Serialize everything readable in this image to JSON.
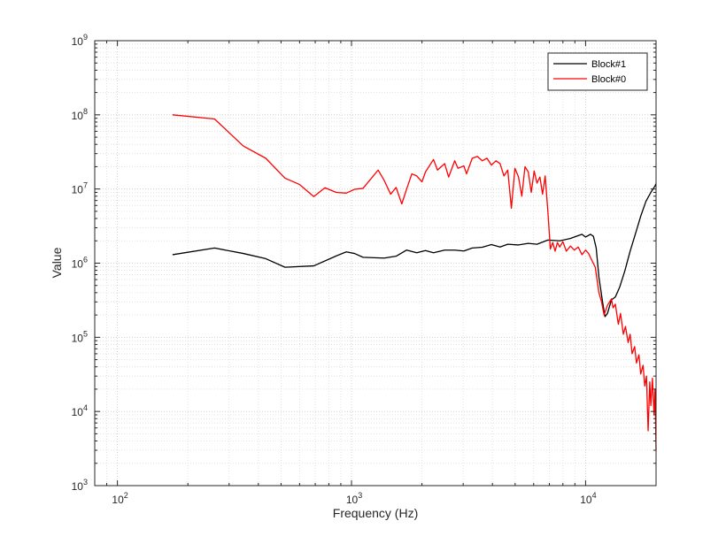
{
  "chart_data": {
    "type": "line",
    "title": "",
    "xlabel": "Frequency (Hz)",
    "ylabel": "Value",
    "xscale": "log",
    "yscale": "log",
    "xlim": [
      80,
      20000
    ],
    "ylim": [
      1000,
      1000000000
    ],
    "grid": true,
    "legend_position": "top-right",
    "x_tick_labels": [
      {
        "value": 100,
        "base": "10",
        "exp": "2"
      },
      {
        "value": 1000,
        "base": "10",
        "exp": "3"
      },
      {
        "value": 10000,
        "base": "10",
        "exp": "4"
      }
    ],
    "y_tick_labels": [
      {
        "value": 1000,
        "base": "10",
        "exp": "3"
      },
      {
        "value": 10000,
        "base": "10",
        "exp": "4"
      },
      {
        "value": 100000,
        "base": "10",
        "exp": "5"
      },
      {
        "value": 1000000,
        "base": "10",
        "exp": "6"
      },
      {
        "value": 10000000,
        "base": "10",
        "exp": "7"
      },
      {
        "value": 100000000,
        "base": "10",
        "exp": "8"
      },
      {
        "value": 1000000000,
        "base": "10",
        "exp": "9"
      }
    ],
    "series": [
      {
        "name": "Block#1",
        "color": "#000000",
        "points": [
          [
            172,
            1300000
          ],
          [
            260,
            1600000
          ],
          [
            345,
            1350000
          ],
          [
            430,
            1150000
          ],
          [
            520,
            880000
          ],
          [
            690,
            920000
          ],
          [
            860,
            1250000
          ],
          [
            950,
            1420000
          ],
          [
            1030,
            1350000
          ],
          [
            1120,
            1200000
          ],
          [
            1290,
            1180000
          ],
          [
            1380,
            1170000
          ],
          [
            1550,
            1240000
          ],
          [
            1720,
            1500000
          ],
          [
            1900,
            1380000
          ],
          [
            2070,
            1480000
          ],
          [
            2240,
            1380000
          ],
          [
            2500,
            1500000
          ],
          [
            2760,
            1500000
          ],
          [
            3020,
            1460000
          ],
          [
            3280,
            1600000
          ],
          [
            3620,
            1640000
          ],
          [
            3960,
            1780000
          ],
          [
            4310,
            1650000
          ],
          [
            4650,
            1800000
          ],
          [
            5170,
            1760000
          ],
          [
            5690,
            1850000
          ],
          [
            6200,
            1800000
          ],
          [
            6900,
            2050000
          ],
          [
            7750,
            2000000
          ],
          [
            8600,
            2150000
          ],
          [
            9300,
            2350000
          ],
          [
            9650,
            2450000
          ],
          [
            10000,
            2250000
          ],
          [
            10500,
            2450000
          ],
          [
            10800,
            2300000
          ],
          [
            11100,
            1600000
          ],
          [
            11400,
            650000
          ],
          [
            11800,
            310000
          ],
          [
            12100,
            190000
          ],
          [
            12400,
            210000
          ],
          [
            12900,
            320000
          ],
          [
            13400,
            350000
          ],
          [
            14000,
            480000
          ],
          [
            14700,
            780000
          ],
          [
            15500,
            1450000
          ],
          [
            16400,
            2600000
          ],
          [
            17200,
            4300000
          ],
          [
            18100,
            6800000
          ],
          [
            19000,
            9000000
          ],
          [
            19800,
            11000000
          ],
          [
            20000,
            11800000
          ]
        ]
      },
      {
        "name": "Block#0",
        "color": "#ff0000",
        "points": [
          [
            172,
            100000000
          ],
          [
            260,
            88000000
          ],
          [
            345,
            38000000
          ],
          [
            430,
            26000000
          ],
          [
            520,
            14000000
          ],
          [
            600,
            11500000
          ],
          [
            690,
            7900000
          ],
          [
            770,
            10400000
          ],
          [
            860,
            9000000
          ],
          [
            950,
            8800000
          ],
          [
            1030,
            9900000
          ],
          [
            1120,
            10200000
          ],
          [
            1300,
            18000000
          ],
          [
            1380,
            13000000
          ],
          [
            1470,
            8500000
          ],
          [
            1550,
            10500000
          ],
          [
            1640,
            6300000
          ],
          [
            1720,
            10000000
          ],
          [
            1810,
            16000000
          ],
          [
            1900,
            15000000
          ],
          [
            2000,
            12500000
          ],
          [
            2070,
            17000000
          ],
          [
            2240,
            25000000
          ],
          [
            2330,
            18000000
          ],
          [
            2500,
            22000000
          ],
          [
            2600,
            14500000
          ],
          [
            2760,
            24000000
          ],
          [
            2850,
            19000000
          ],
          [
            3020,
            20500000
          ],
          [
            3100,
            16000000
          ],
          [
            3280,
            26000000
          ],
          [
            3450,
            27500000
          ],
          [
            3620,
            24000000
          ],
          [
            3790,
            26000000
          ],
          [
            3960,
            21000000
          ],
          [
            4140,
            24000000
          ],
          [
            4310,
            22000000
          ],
          [
            4480,
            15000000
          ],
          [
            4650,
            18000000
          ],
          [
            4820,
            5500000
          ],
          [
            4990,
            19000000
          ],
          [
            5170,
            14500000
          ],
          [
            5340,
            8000000
          ],
          [
            5510,
            20000000
          ],
          [
            5690,
            17000000
          ],
          [
            5860,
            9000000
          ],
          [
            6030,
            17500000
          ],
          [
            6200,
            12000000
          ],
          [
            6380,
            14500000
          ],
          [
            6550,
            8500000
          ],
          [
            6720,
            15000000
          ],
          [
            6900,
            5000000
          ],
          [
            7070,
            1550000
          ],
          [
            7240,
            1900000
          ],
          [
            7410,
            1450000
          ],
          [
            7580,
            1900000
          ],
          [
            7750,
            1650000
          ],
          [
            8000,
            1950000
          ],
          [
            8270,
            1450000
          ],
          [
            8620,
            1700000
          ],
          [
            8950,
            1500000
          ],
          [
            9300,
            1650000
          ],
          [
            9650,
            1300000
          ],
          [
            10000,
            1500000
          ],
          [
            10300,
            1350000
          ],
          [
            10700,
            1050000
          ],
          [
            11000,
            880000
          ],
          [
            11400,
            400000
          ],
          [
            11700,
            300000
          ],
          [
            12000,
            200000
          ],
          [
            12400,
            270000
          ],
          [
            12900,
            330000
          ],
          [
            13100,
            250000
          ],
          [
            13400,
            280000
          ],
          [
            13800,
            150000
          ],
          [
            14100,
            210000
          ],
          [
            14500,
            110000
          ],
          [
            14800,
            140000
          ],
          [
            15200,
            85000
          ],
          [
            15500,
            110000
          ],
          [
            15800,
            60000
          ],
          [
            16200,
            75000
          ],
          [
            16500,
            45000
          ],
          [
            16900,
            58000
          ],
          [
            17200,
            32000
          ],
          [
            17600,
            42000
          ],
          [
            17900,
            22000
          ],
          [
            18200,
            30000
          ],
          [
            18500,
            5500
          ],
          [
            18800,
            25000
          ],
          [
            19000,
            12000
          ],
          [
            19300,
            28000
          ],
          [
            19600,
            9000
          ],
          [
            19800,
            20000
          ],
          [
            20000,
            3000
          ]
        ]
      }
    ]
  }
}
